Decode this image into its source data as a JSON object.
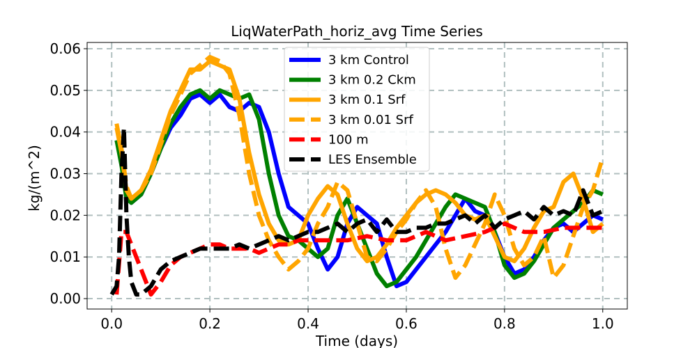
{
  "chart_data": {
    "type": "line",
    "title": "LiqWaterPath_horiz_avg Time Series",
    "xlabel": "Time (days)",
    "ylabel": "kg/(m^2)",
    "xlim": [
      -0.05,
      1.05
    ],
    "ylim": [
      -0.0025,
      0.0615
    ],
    "xticks": [
      0.0,
      0.2,
      0.4,
      0.6,
      0.8,
      1.0
    ],
    "xtick_labels": [
      "0.0",
      "0.2",
      "0.4",
      "0.6",
      "0.8",
      "1.0"
    ],
    "yticks": [
      0.0,
      0.01,
      0.02,
      0.03,
      0.04,
      0.05,
      0.06
    ],
    "ytick_labels": [
      "0.00",
      "0.01",
      "0.02",
      "0.03",
      "0.04",
      "0.05",
      "0.06"
    ],
    "grid": true,
    "legend_position": "top-center",
    "series": [
      {
        "name": "3 km Control",
        "color": "#0000ff",
        "style": "solid",
        "x": [
          0.01,
          0.02,
          0.03,
          0.04,
          0.06,
          0.08,
          0.1,
          0.12,
          0.14,
          0.16,
          0.18,
          0.2,
          0.22,
          0.24,
          0.26,
          0.28,
          0.3,
          0.32,
          0.34,
          0.36,
          0.38,
          0.4,
          0.42,
          0.44,
          0.46,
          0.48,
          0.5,
          0.52,
          0.54,
          0.56,
          0.58,
          0.6,
          0.62,
          0.64,
          0.66,
          0.68,
          0.7,
          0.72,
          0.74,
          0.76,
          0.78,
          0.8,
          0.82,
          0.84,
          0.86,
          0.88,
          0.9,
          0.92,
          0.94,
          0.96,
          0.98,
          1.0
        ],
        "y": [
          0.038,
          0.034,
          0.025,
          0.023,
          0.025,
          0.03,
          0.036,
          0.041,
          0.044,
          0.048,
          0.049,
          0.047,
          0.049,
          0.046,
          0.045,
          0.047,
          0.046,
          0.04,
          0.03,
          0.022,
          0.02,
          0.018,
          0.012,
          0.007,
          0.01,
          0.018,
          0.022,
          0.02,
          0.018,
          0.01,
          0.003,
          0.004,
          0.007,
          0.01,
          0.013,
          0.016,
          0.02,
          0.024,
          0.021,
          0.02,
          0.016,
          0.01,
          0.006,
          0.007,
          0.01,
          0.014,
          0.017,
          0.018,
          0.016,
          0.018,
          0.02,
          0.019
        ]
      },
      {
        "name": "3 km 0.2 Ckm",
        "color": "#008000",
        "style": "solid",
        "x": [
          0.01,
          0.02,
          0.03,
          0.04,
          0.06,
          0.08,
          0.1,
          0.12,
          0.14,
          0.16,
          0.18,
          0.2,
          0.22,
          0.24,
          0.26,
          0.28,
          0.3,
          0.32,
          0.34,
          0.36,
          0.38,
          0.4,
          0.42,
          0.44,
          0.46,
          0.48,
          0.5,
          0.52,
          0.54,
          0.56,
          0.58,
          0.6,
          0.62,
          0.64,
          0.66,
          0.68,
          0.7,
          0.72,
          0.74,
          0.76,
          0.78,
          0.8,
          0.82,
          0.84,
          0.86,
          0.88,
          0.9,
          0.92,
          0.94,
          0.96,
          0.98,
          1.0
        ],
        "y": [
          0.038,
          0.032,
          0.024,
          0.023,
          0.025,
          0.03,
          0.036,
          0.042,
          0.046,
          0.049,
          0.05,
          0.048,
          0.05,
          0.049,
          0.048,
          0.049,
          0.043,
          0.03,
          0.02,
          0.015,
          0.014,
          0.012,
          0.01,
          0.012,
          0.02,
          0.024,
          0.018,
          0.012,
          0.006,
          0.003,
          0.004,
          0.007,
          0.01,
          0.014,
          0.018,
          0.022,
          0.025,
          0.024,
          0.023,
          0.022,
          0.016,
          0.008,
          0.005,
          0.006,
          0.009,
          0.013,
          0.017,
          0.019,
          0.021,
          0.023,
          0.026,
          0.025
        ]
      },
      {
        "name": "3 km 0.1 Srf",
        "color": "#ffa500",
        "style": "solid",
        "x": [
          0.01,
          0.02,
          0.03,
          0.04,
          0.06,
          0.08,
          0.1,
          0.12,
          0.14,
          0.16,
          0.18,
          0.2,
          0.22,
          0.24,
          0.26,
          0.28,
          0.3,
          0.32,
          0.34,
          0.36,
          0.38,
          0.4,
          0.42,
          0.44,
          0.46,
          0.48,
          0.5,
          0.52,
          0.54,
          0.56,
          0.58,
          0.6,
          0.62,
          0.64,
          0.66,
          0.68,
          0.7,
          0.72,
          0.74,
          0.76,
          0.78,
          0.8,
          0.82,
          0.84,
          0.86,
          0.88,
          0.9,
          0.92,
          0.94,
          0.96,
          0.98,
          1.0
        ],
        "y": [
          0.041,
          0.035,
          0.026,
          0.024,
          0.026,
          0.031,
          0.038,
          0.045,
          0.05,
          0.055,
          0.055,
          0.057,
          0.056,
          0.055,
          0.048,
          0.035,
          0.025,
          0.018,
          0.014,
          0.013,
          0.014,
          0.02,
          0.024,
          0.027,
          0.025,
          0.018,
          0.012,
          0.009,
          0.01,
          0.013,
          0.017,
          0.02,
          0.023,
          0.025,
          0.026,
          0.025,
          0.023,
          0.02,
          0.019,
          0.02,
          0.015,
          0.01,
          0.009,
          0.012,
          0.017,
          0.021,
          0.022,
          0.028,
          0.03,
          0.024,
          0.016,
          0.018
        ]
      },
      {
        "name": "3 km 0.01 Srf",
        "color": "#ffa500",
        "style": "dashed",
        "x": [
          0.01,
          0.02,
          0.03,
          0.04,
          0.06,
          0.08,
          0.1,
          0.12,
          0.14,
          0.16,
          0.18,
          0.2,
          0.22,
          0.24,
          0.26,
          0.28,
          0.3,
          0.32,
          0.34,
          0.36,
          0.38,
          0.4,
          0.42,
          0.44,
          0.46,
          0.48,
          0.5,
          0.52,
          0.54,
          0.56,
          0.58,
          0.6,
          0.62,
          0.64,
          0.66,
          0.68,
          0.7,
          0.72,
          0.74,
          0.76,
          0.78,
          0.8,
          0.82,
          0.84,
          0.86,
          0.88,
          0.9,
          0.92,
          0.94,
          0.96,
          0.98,
          1.0
        ],
        "y": [
          0.042,
          0.036,
          0.027,
          0.024,
          0.026,
          0.03,
          0.037,
          0.044,
          0.049,
          0.054,
          0.056,
          0.058,
          0.057,
          0.054,
          0.044,
          0.03,
          0.02,
          0.014,
          0.01,
          0.007,
          0.009,
          0.012,
          0.018,
          0.022,
          0.028,
          0.026,
          0.018,
          0.01,
          0.009,
          0.012,
          0.016,
          0.019,
          0.023,
          0.026,
          0.022,
          0.012,
          0.005,
          0.008,
          0.013,
          0.018,
          0.025,
          0.02,
          0.012,
          0.008,
          0.01,
          0.015,
          0.005,
          0.008,
          0.015,
          0.022,
          0.026,
          0.034
        ]
      },
      {
        "name": "100 m",
        "color": "#ff0000",
        "style": "dashed",
        "x": [
          0.01,
          0.02,
          0.03,
          0.04,
          0.06,
          0.08,
          0.1,
          0.12,
          0.14,
          0.16,
          0.18,
          0.2,
          0.22,
          0.24,
          0.26,
          0.28,
          0.3,
          0.32,
          0.34,
          0.36,
          0.38,
          0.4,
          0.44,
          0.48,
          0.52,
          0.56,
          0.6,
          0.64,
          0.68,
          0.72,
          0.76,
          0.8,
          0.84,
          0.88,
          0.92,
          0.96,
          1.0
        ],
        "y": [
          0.001,
          0.016,
          0.016,
          0.013,
          0.007,
          0.001,
          0.004,
          0.008,
          0.01,
          0.011,
          0.012,
          0.013,
          0.013,
          0.012,
          0.012,
          0.012,
          0.011,
          0.012,
          0.013,
          0.013,
          0.014,
          0.014,
          0.014,
          0.014,
          0.015,
          0.014,
          0.014,
          0.016,
          0.014,
          0.015,
          0.016,
          0.018,
          0.016,
          0.016,
          0.017,
          0.017,
          0.017
        ]
      },
      {
        "name": "LES Ensemble",
        "color": "#000000",
        "style": "dashed",
        "x": [
          0.0,
          0.01,
          0.015,
          0.02,
          0.025,
          0.03,
          0.035,
          0.04,
          0.05,
          0.06,
          0.08,
          0.1,
          0.12,
          0.14,
          0.16,
          0.18,
          0.2,
          0.22,
          0.24,
          0.26,
          0.28,
          0.3,
          0.32,
          0.34,
          0.36,
          0.38,
          0.4,
          0.42,
          0.44,
          0.46,
          0.48,
          0.5,
          0.52,
          0.54,
          0.56,
          0.58,
          0.6,
          0.62,
          0.64,
          0.66,
          0.68,
          0.7,
          0.72,
          0.74,
          0.76,
          0.78,
          0.8,
          0.82,
          0.84,
          0.86,
          0.88,
          0.9,
          0.92,
          0.94,
          0.96,
          0.98,
          1.0
        ],
        "y": [
          0.001,
          0.003,
          0.01,
          0.03,
          0.041,
          0.02,
          0.01,
          0.004,
          0.001,
          0.001,
          0.003,
          0.007,
          0.009,
          0.01,
          0.011,
          0.012,
          0.012,
          0.012,
          0.012,
          0.013,
          0.012,
          0.013,
          0.014,
          0.015,
          0.014,
          0.015,
          0.016,
          0.016,
          0.017,
          0.018,
          0.016,
          0.018,
          0.019,
          0.016,
          0.019,
          0.016,
          0.016,
          0.017,
          0.017,
          0.018,
          0.018,
          0.019,
          0.02,
          0.018,
          0.02,
          0.017,
          0.019,
          0.02,
          0.021,
          0.019,
          0.022,
          0.02,
          0.021,
          0.02,
          0.026,
          0.02,
          0.021
        ]
      }
    ]
  }
}
